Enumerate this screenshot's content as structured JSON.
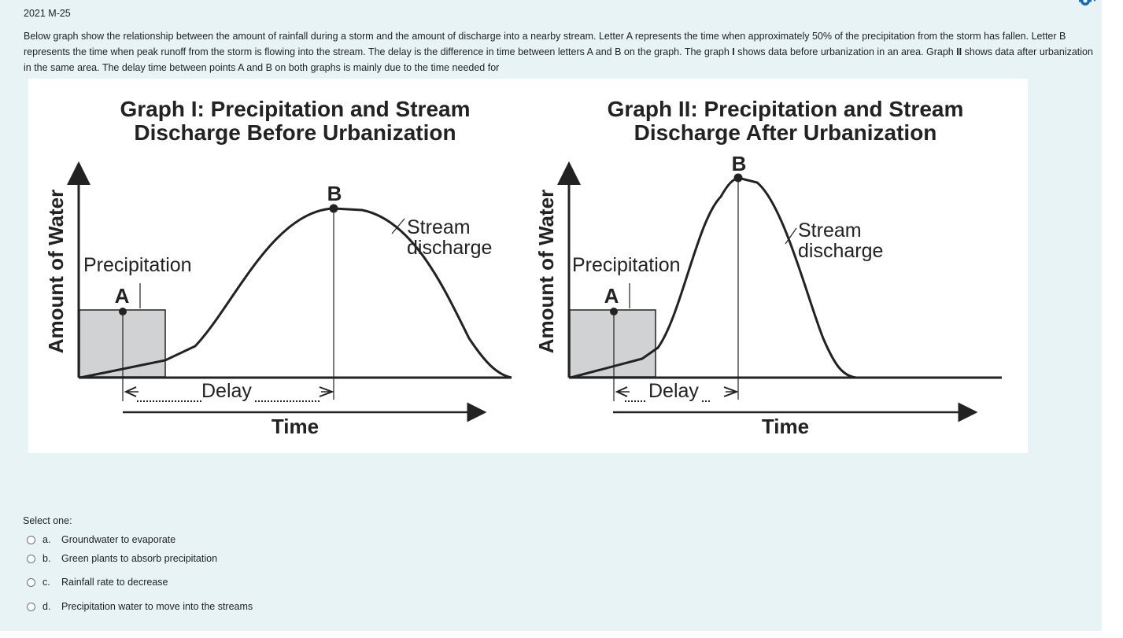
{
  "question": {
    "number": "2021 M-25",
    "text_1": "Below graph show the relationship between the amount of rainfall during a storm and the amount of discharge into a nearby stream. Letter A represents the time when approximately 50% of the precipitation from the storm has fallen. Letter B represents the time when peak runoff from the storm is flowing into the stream. The delay is the difference in time between letters A and B on the graph. The graph ",
    "bold_1": "I",
    "text_2": " shows data before urbanization in an area. Graph ",
    "bold_2": "II",
    "text_3": " shows data after urbanization in the same area. The delay time between points A and B on both graphs is mainly due to the time needed for"
  },
  "figure": {
    "graph1": {
      "title_line1": "Graph I: Precipitation and Stream",
      "title_line2": "Discharge Before Urbanization",
      "ylabel": "Amount of Water",
      "xlabel": "Time",
      "precip_label": "Precipitation",
      "stream_label_1": "Stream",
      "stream_label_2": "discharge",
      "point_a": "A",
      "point_b": "B",
      "delay_label": "Delay"
    },
    "graph2": {
      "title_line1": "Graph II: Precipitation and Stream",
      "title_line2": "Discharge After Urbanization",
      "ylabel": "Amount of Water",
      "xlabel": "Time",
      "precip_label": "Precipitation",
      "stream_label_1": "Stream",
      "stream_label_2": "discharge",
      "point_a": "A",
      "point_b": "B",
      "delay_label": "Delay"
    }
  },
  "answer": {
    "prompt": "Select one:",
    "options": [
      {
        "letter": "a.",
        "text": "Groundwater to evaporate"
      },
      {
        "letter": "b.",
        "text": "Green plants to absorb precipitation"
      },
      {
        "letter": "c.",
        "text": "Rainfall rate to decrease"
      },
      {
        "letter": "d.",
        "text": "Precipitation water to move into the streams"
      }
    ]
  },
  "icons": {
    "settings": "gear-icon"
  },
  "colors": {
    "panel_bg": "#e7f3f5",
    "accent": "#0f6cbf",
    "bar_fill": "#d1d2d4"
  }
}
